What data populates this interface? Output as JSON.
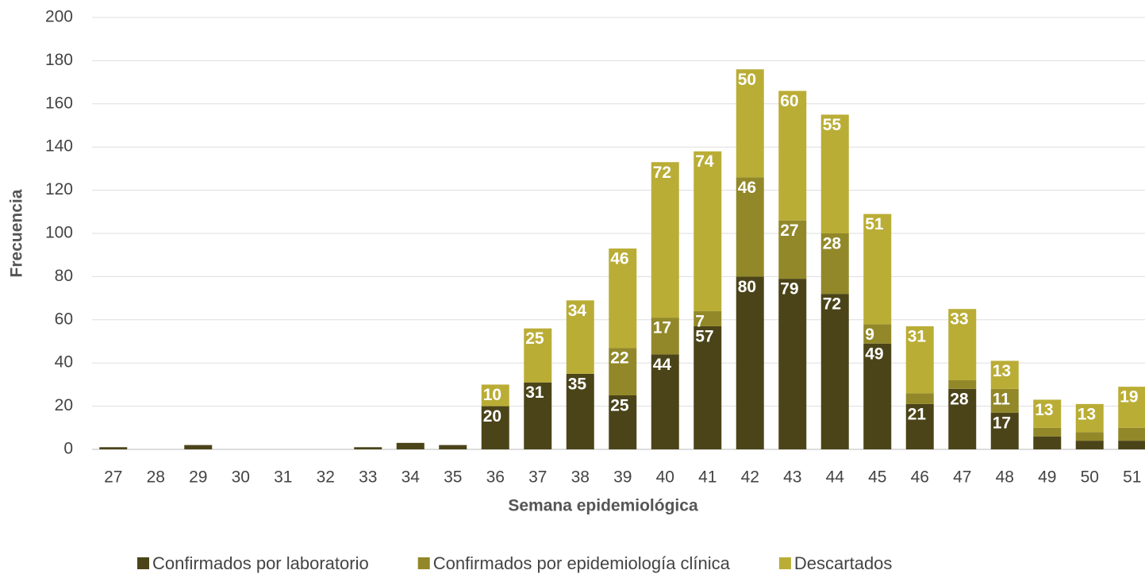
{
  "chart_data": {
    "type": "stacked_bar",
    "x_label": "Semana epidemiológica",
    "y_label": "Frecuencia",
    "categories": [
      "27",
      "28",
      "29",
      "30",
      "31",
      "32",
      "33",
      "34",
      "35",
      "36",
      "37",
      "38",
      "39",
      "40",
      "41",
      "42",
      "43",
      "44",
      "45",
      "46",
      "47",
      "48",
      "49",
      "50",
      "51"
    ],
    "series": [
      {
        "name": "Confirmados por laboratorio",
        "color": "#4b4419",
        "values": [
          1,
          0,
          2,
          0,
          0,
          0,
          1,
          3,
          2,
          20,
          31,
          35,
          25,
          44,
          57,
          80,
          79,
          72,
          49,
          21,
          28,
          17,
          6,
          4,
          4
        ]
      },
      {
        "name": "Confirmados por epidemiología clínica",
        "color": "#928829",
        "values": [
          0,
          0,
          0,
          0,
          0,
          0,
          0,
          0,
          0,
          0,
          0,
          0,
          22,
          17,
          7,
          46,
          27,
          28,
          9,
          5,
          4,
          11,
          4,
          4,
          6
        ]
      },
      {
        "name": "Descartados",
        "color": "#baad36",
        "values": [
          0,
          0,
          0,
          0,
          0,
          0,
          0,
          0,
          0,
          10,
          25,
          34,
          46,
          72,
          74,
          50,
          60,
          55,
          51,
          31,
          33,
          13,
          13,
          13,
          19
        ]
      }
    ],
    "ylim": [
      0,
      200
    ],
    "yticks": [
      0,
      20,
      40,
      60,
      80,
      100,
      120,
      140,
      160,
      180,
      200
    ],
    "grid": true,
    "legend": "bottom"
  }
}
